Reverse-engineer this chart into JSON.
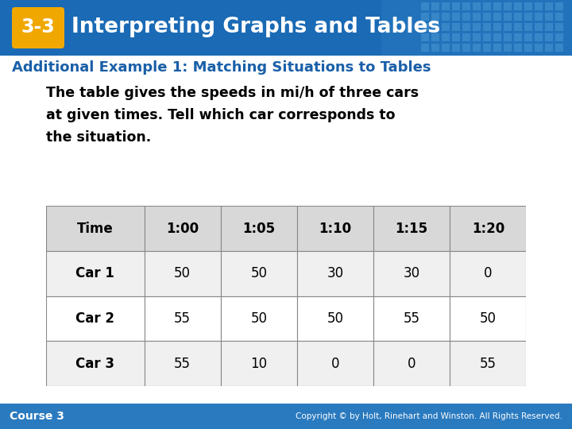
{
  "title_badge": "3-3",
  "title_text": "Interpreting Graphs and Tables",
  "subtitle": "Additional Example 1: Matching Situations to Tables",
  "body_text": "The table gives the speeds in mi/h of three cars\nat given times. Tell which car corresponds to\nthe situation.",
  "table_headers": [
    "Time",
    "1:00",
    "1:05",
    "1:10",
    "1:15",
    "1:20"
  ],
  "table_rows": [
    [
      "Car 1",
      "50",
      "50",
      "30",
      "30",
      "0"
    ],
    [
      "Car 2",
      "55",
      "50",
      "50",
      "55",
      "50"
    ],
    [
      "Car 3",
      "55",
      "10",
      "0",
      "0",
      "55"
    ]
  ],
  "header_bg": "#1a6ab5",
  "header_text_color": "#ffffff",
  "badge_bg": "#f0a800",
  "subtitle_color": "#1a5fa8",
  "body_text_color": "#000000",
  "footer_bg": "#2a7abf",
  "footer_text": "Course 3",
  "footer_right": "Copyright © by Holt, Rinehart and Winston. All Rights Reserved.",
  "background_color": "#ffffff",
  "table_header_row_bg": "#d8d8d8",
  "table_odd_bg": "#f0f0f0",
  "table_even_bg": "#ffffff",
  "grid_line_color": "#888888"
}
